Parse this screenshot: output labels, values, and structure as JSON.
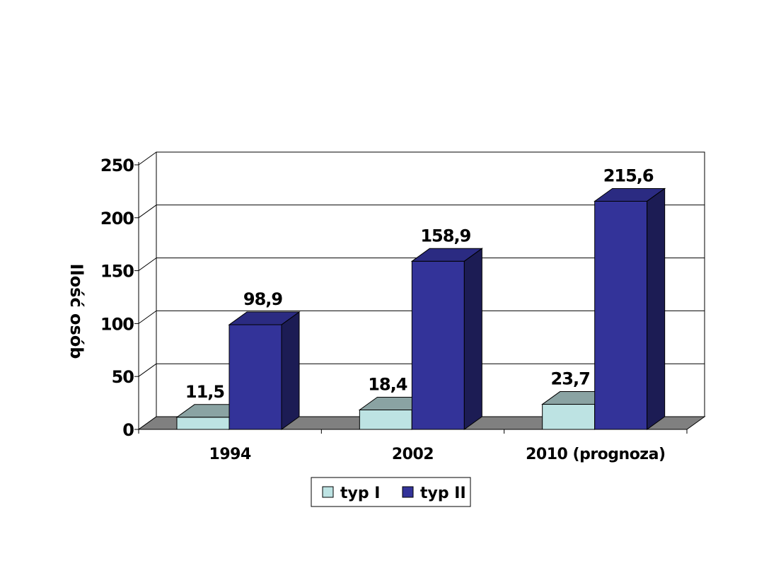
{
  "chart_data": {
    "type": "bar",
    "style": "3d-clustered-column",
    "categories": [
      "1994",
      "2002",
      "2010 (prognoza)"
    ],
    "series": [
      {
        "name": "typ I",
        "values": [
          11.5,
          18.4,
          23.7
        ],
        "labels": [
          "11,5",
          "18,4",
          "23,7"
        ],
        "color": "#BDE3E3"
      },
      {
        "name": "typ II",
        "values": [
          98.9,
          158.9,
          215.6
        ],
        "labels": [
          "98,9",
          "158,9",
          "215,6"
        ],
        "color": "#333399"
      }
    ],
    "ylabel": "Ilość osób",
    "ylim": [
      0,
      250
    ],
    "yticks": [
      0,
      50,
      100,
      150,
      200,
      250
    ],
    "ytick_labels": [
      "0",
      "50",
      "100",
      "150",
      "200",
      "250"
    ],
    "grid": true,
    "legend": "bottom"
  }
}
